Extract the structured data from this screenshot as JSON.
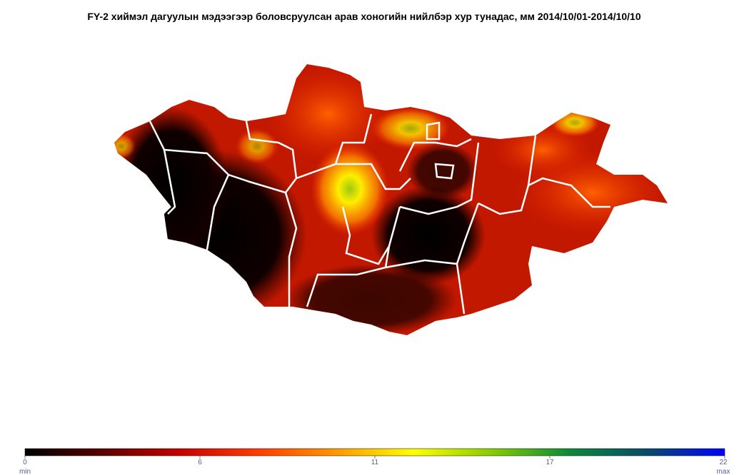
{
  "title": "FY-2  хиймэл дагуулын мэдээгээр боловсруулсан арав хоногийн нийлбэр хур тунадас, мм 2014/10/01-2014/10/10",
  "colorbar": {
    "range": [
      0,
      22
    ],
    "ticks": [
      0,
      {
        "value": 5.5,
        "label": "6"
      },
      11,
      {
        "value": 16.5,
        "label": "17"
      },
      22
    ],
    "end_labels": [
      "min",
      "max"
    ],
    "colors": [
      "#000000",
      "#5a0000",
      "#c80000",
      "#ff3c00",
      "#ff9900",
      "#ffff00",
      "#88cc00",
      "#0a8a3a",
      "#0a4a6a",
      "#0000ff"
    ]
  }
}
